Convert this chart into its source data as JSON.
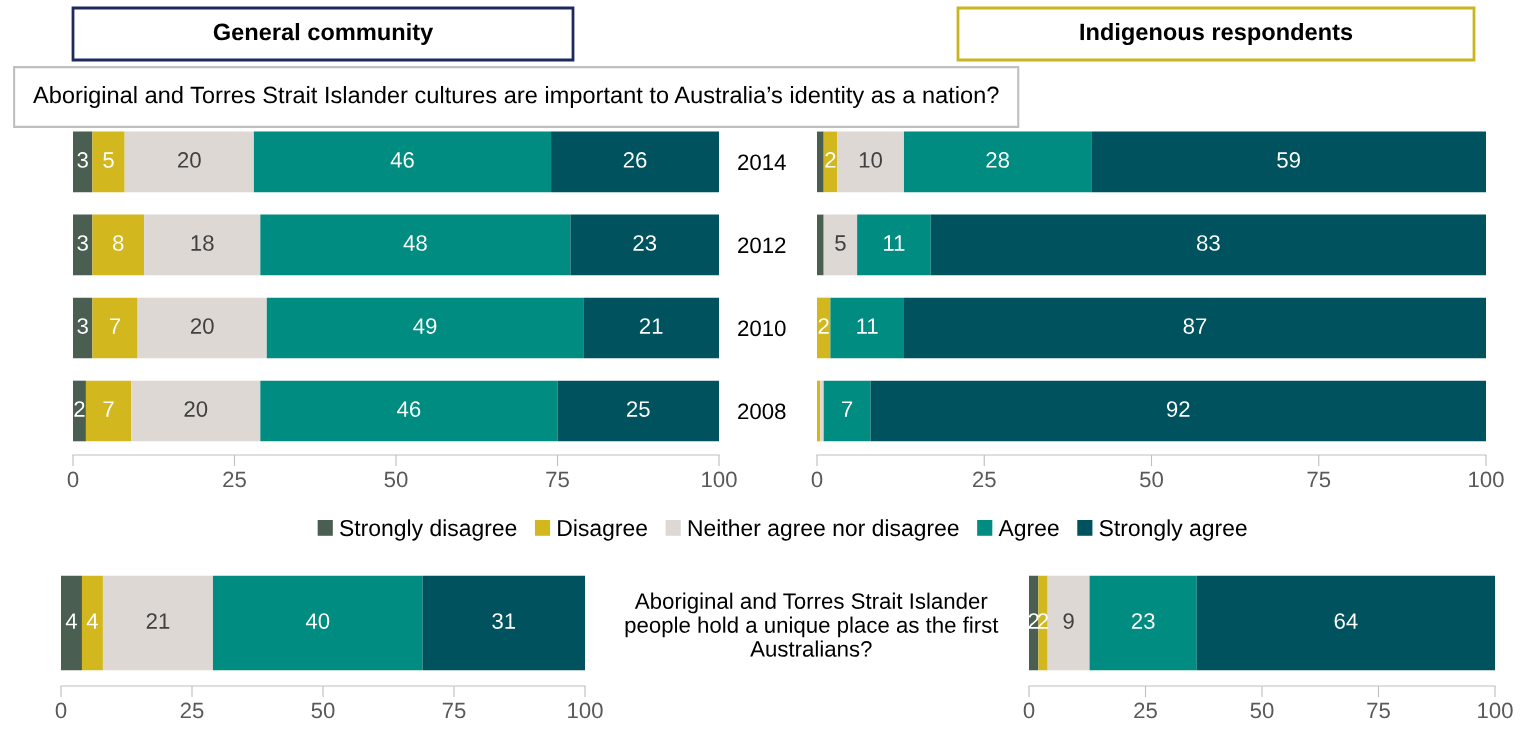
{
  "chart_data": [
    {
      "type": "bar",
      "orientation": "horizontal",
      "stacked": true,
      "title": "General community",
      "subtitle": "Aboriginal and Torres Strait Islander cultures are important to Australia’s identity as a nation?",
      "categories": [
        null,
        null,
        null,
        null
      ],
      "tick_labels": "x",
      "xlim": [
        0,
        100
      ],
      "xticks": [
        0,
        25,
        50,
        75,
        100
      ],
      "grid": false,
      "legend": "bottom",
      "series": [
        {
          "name": "Strongly disagree",
          "color": "#4a5e52",
          "values": [
            3,
            3,
            3,
            2
          ],
          "value_labels": [
            "3",
            "3",
            "3",
            "2"
          ]
        },
        {
          "name": "Disagree",
          "color": "#d2b81e",
          "values": [
            5,
            8,
            7,
            7
          ],
          "value_labels": [
            "5",
            "8",
            "7",
            "7"
          ]
        },
        {
          "name": "Neither agree nor disagree",
          "color": "#ddd8d4",
          "values": [
            20,
            18,
            20,
            20
          ],
          "value_labels": [
            "20",
            "18",
            "20",
            "20"
          ]
        },
        {
          "name": "Agree",
          "color": "#008c80",
          "values": [
            46,
            48,
            49,
            46
          ],
          "value_labels": [
            "46",
            "48",
            "49",
            "46"
          ]
        },
        {
          "name": "Strongly agree",
          "color": "#00535e",
          "values": [
            26,
            23,
            21,
            25
          ],
          "value_labels": [
            "26",
            "23",
            "21",
            "25"
          ]
        }
      ]
    },
    {
      "type": "bar",
      "orientation": "horizontal",
      "stacked": true,
      "title": "Indigenous respondents",
      "categories": [
        "2014",
        "2012",
        "2010",
        "2008"
      ],
      "xlim": [
        0,
        100
      ],
      "xticks": [
        0,
        25,
        50,
        75,
        100
      ],
      "grid": false,
      "series": [
        {
          "color": "#4a5e52",
          "values": [
            1,
            1,
            0,
            0
          ],
          "value_labels": [
            null,
            null,
            null,
            null
          ]
        },
        {
          "color": "#d2b81e",
          "values": [
            2,
            0,
            2,
            0.5
          ],
          "value_labels": [
            "2",
            null,
            "2",
            null
          ]
        },
        {
          "color": "#ddd8d4",
          "values": [
            10,
            5,
            0,
            0.5
          ],
          "value_labels": [
            "10",
            "5",
            null,
            null
          ]
        },
        {
          "color": "#008c80",
          "values": [
            28,
            11,
            11,
            7
          ],
          "value_labels": [
            "28",
            "11",
            "11",
            "7"
          ]
        },
        {
          "color": "#00535e",
          "values": [
            59,
            83,
            87,
            92
          ],
          "value_labels": [
            "59",
            "83",
            "87",
            "92"
          ]
        }
      ]
    },
    {
      "type": "bar",
      "orientation": "horizontal",
      "stacked": true,
      "categories": [
        null
      ],
      "tick_labels": "x",
      "xlim": [
        0,
        100
      ],
      "xticks": [
        0,
        25,
        50,
        75,
        100
      ],
      "grid": false,
      "series": [
        {
          "color": "#4a5e52",
          "values": [
            4
          ],
          "value_labels": [
            "4"
          ]
        },
        {
          "color": "#d2b81e",
          "values": [
            4
          ],
          "value_labels": [
            "4"
          ]
        },
        {
          "color": "#ddd8d4",
          "values": [
            21
          ],
          "value_labels": [
            "21"
          ]
        },
        {
          "color": "#008c80",
          "values": [
            40
          ],
          "value_labels": [
            "40"
          ]
        },
        {
          "color": "#00535e",
          "values": [
            31
          ],
          "value_labels": [
            "31"
          ]
        }
      ]
    },
    {
      "type": "bar",
      "orientation": "horizontal",
      "stacked": true,
      "categories": [
        "Aboriginal and Torres Strait Islander\npeople hold a unique place as the first\nAustralians?"
      ],
      "xlim": [
        0,
        100
      ],
      "xticks": [
        0,
        25,
        50,
        75,
        100
      ],
      "grid": false,
      "series": [
        {
          "color": "#4a5e52",
          "values": [
            2
          ],
          "value_labels": [
            "2"
          ]
        },
        {
          "color": "#d2b81e",
          "values": [
            2
          ],
          "value_labels": [
            "2"
          ]
        },
        {
          "color": "#ddd8d4",
          "values": [
            9
          ],
          "value_labels": [
            "9"
          ]
        },
        {
          "color": "#008c80",
          "values": [
            23
          ],
          "value_labels": [
            "23"
          ]
        },
        {
          "color": "#00535e",
          "values": [
            64
          ],
          "value_labels": [
            "64"
          ]
        }
      ]
    }
  ]
}
